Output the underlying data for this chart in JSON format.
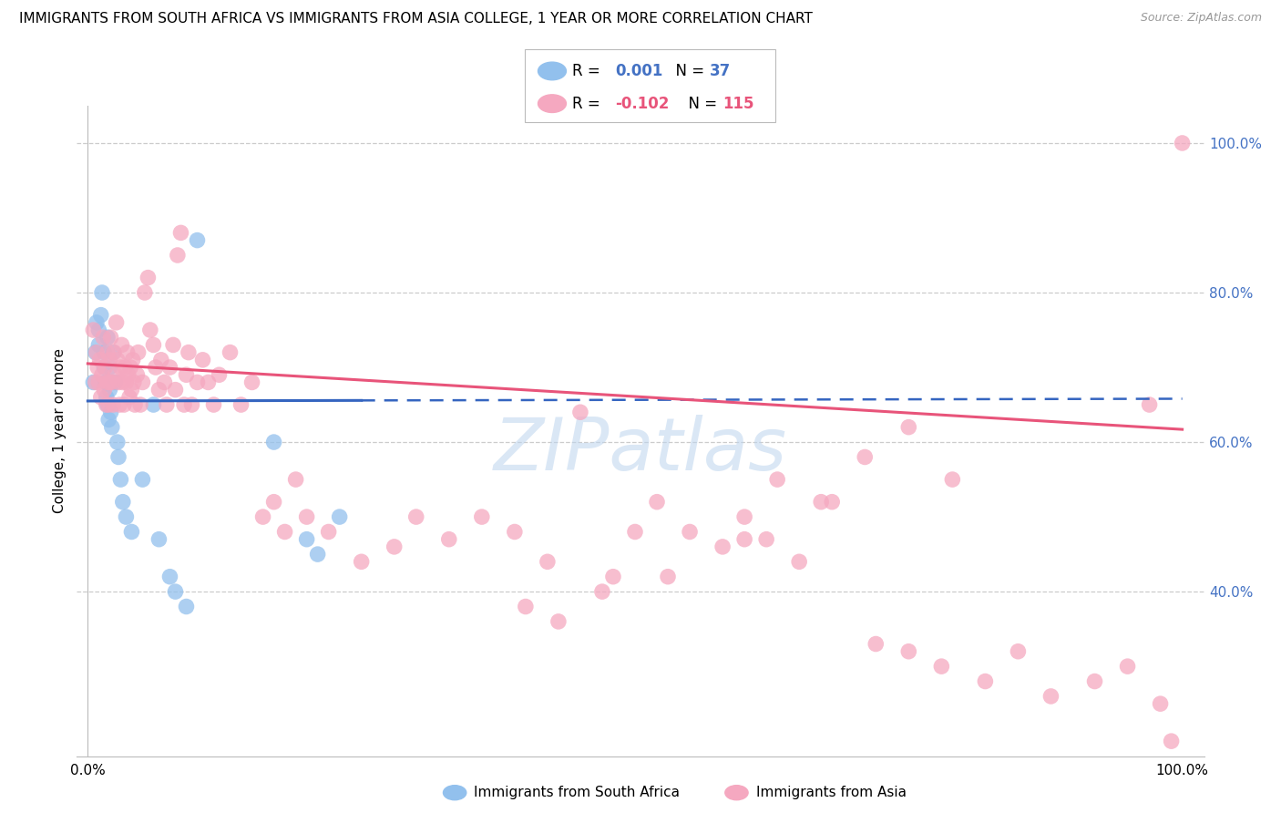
{
  "title": "IMMIGRANTS FROM SOUTH AFRICA VS IMMIGRANTS FROM ASIA COLLEGE, 1 YEAR OR MORE CORRELATION CHART",
  "source": "Source: ZipAtlas.com",
  "ylabel": "College, 1 year or more",
  "right_ytick_labels": [
    "100.0%",
    "80.0%",
    "60.0%",
    "40.0%"
  ],
  "right_ytick_values": [
    1.0,
    0.8,
    0.6,
    0.4
  ],
  "xtick_labels": [
    "0.0%",
    "100.0%"
  ],
  "xlim": [
    0.0,
    1.0
  ],
  "ylim": [
    0.18,
    1.05
  ],
  "legend_label_blue": "Immigrants from South Africa",
  "legend_label_pink": "Immigrants from Asia",
  "blue_color": "#92c0ed",
  "pink_color": "#f5a8c0",
  "blue_line_color": "#3565c0",
  "pink_line_color": "#e8547a",
  "blue_r": 0.001,
  "blue_n": 37,
  "pink_r": -0.102,
  "pink_n": 115,
  "watermark": "ZIPatlas",
  "title_fontsize": 11,
  "axis_label_fontsize": 11,
  "tick_fontsize": 11,
  "right_tick_color": "#4472c4",
  "grid_color": "#cccccc",
  "background_color": "#ffffff",
  "blue_trend_y0": 0.655,
  "blue_trend_y1": 0.658,
  "pink_trend_y0": 0.705,
  "pink_trend_y1": 0.617,
  "blue_scatter_x": [
    0.005,
    0.007,
    0.008,
    0.01,
    0.01,
    0.012,
    0.013,
    0.015,
    0.015,
    0.016,
    0.017,
    0.018,
    0.018,
    0.019,
    0.02,
    0.02,
    0.021,
    0.022,
    0.023,
    0.025,
    0.027,
    0.028,
    0.03,
    0.032,
    0.035,
    0.04,
    0.05,
    0.06,
    0.065,
    0.075,
    0.08,
    0.09,
    0.1,
    0.17,
    0.2,
    0.21,
    0.23
  ],
  "blue_scatter_y": [
    0.68,
    0.72,
    0.76,
    0.75,
    0.73,
    0.77,
    0.8,
    0.72,
    0.7,
    0.68,
    0.66,
    0.74,
    0.65,
    0.63,
    0.7,
    0.67,
    0.64,
    0.62,
    0.72,
    0.68,
    0.6,
    0.58,
    0.55,
    0.52,
    0.5,
    0.48,
    0.55,
    0.65,
    0.47,
    0.42,
    0.4,
    0.38,
    0.87,
    0.6,
    0.47,
    0.45,
    0.5
  ],
  "pink_scatter_x": [
    0.005,
    0.007,
    0.008,
    0.009,
    0.01,
    0.011,
    0.012,
    0.013,
    0.014,
    0.015,
    0.016,
    0.017,
    0.018,
    0.018,
    0.019,
    0.02,
    0.02,
    0.021,
    0.022,
    0.023,
    0.024,
    0.025,
    0.026,
    0.027,
    0.028,
    0.029,
    0.03,
    0.031,
    0.032,
    0.033,
    0.034,
    0.035,
    0.036,
    0.037,
    0.038,
    0.039,
    0.04,
    0.041,
    0.042,
    0.043,
    0.045,
    0.046,
    0.048,
    0.05,
    0.052,
    0.055,
    0.057,
    0.06,
    0.062,
    0.065,
    0.067,
    0.07,
    0.072,
    0.075,
    0.078,
    0.08,
    0.082,
    0.085,
    0.088,
    0.09,
    0.092,
    0.095,
    0.1,
    0.105,
    0.11,
    0.115,
    0.12,
    0.13,
    0.14,
    0.15,
    0.16,
    0.17,
    0.18,
    0.19,
    0.2,
    0.22,
    0.25,
    0.28,
    0.3,
    0.33,
    0.36,
    0.39,
    0.42,
    0.45,
    0.48,
    0.5,
    0.52,
    0.55,
    0.58,
    0.6,
    0.62,
    0.65,
    0.68,
    0.72,
    0.75,
    0.78,
    0.82,
    0.85,
    0.88,
    0.92,
    0.95,
    0.97,
    0.98,
    0.99,
    1.0,
    0.4,
    0.43,
    0.47,
    0.53,
    0.6,
    0.63,
    0.67,
    0.71,
    0.75,
    0.79
  ],
  "pink_scatter_y": [
    0.75,
    0.68,
    0.72,
    0.7,
    0.68,
    0.71,
    0.66,
    0.69,
    0.74,
    0.67,
    0.7,
    0.65,
    0.68,
    0.72,
    0.65,
    0.68,
    0.71,
    0.74,
    0.68,
    0.65,
    0.72,
    0.69,
    0.76,
    0.71,
    0.68,
    0.65,
    0.7,
    0.73,
    0.68,
    0.65,
    0.7,
    0.68,
    0.72,
    0.69,
    0.66,
    0.7,
    0.67,
    0.71,
    0.68,
    0.65,
    0.69,
    0.72,
    0.65,
    0.68,
    0.8,
    0.82,
    0.75,
    0.73,
    0.7,
    0.67,
    0.71,
    0.68,
    0.65,
    0.7,
    0.73,
    0.67,
    0.85,
    0.88,
    0.65,
    0.69,
    0.72,
    0.65,
    0.68,
    0.71,
    0.68,
    0.65,
    0.69,
    0.72,
    0.65,
    0.68,
    0.5,
    0.52,
    0.48,
    0.55,
    0.5,
    0.48,
    0.44,
    0.46,
    0.5,
    0.47,
    0.5,
    0.48,
    0.44,
    0.64,
    0.42,
    0.48,
    0.52,
    0.48,
    0.46,
    0.5,
    0.47,
    0.44,
    0.52,
    0.33,
    0.32,
    0.3,
    0.28,
    0.32,
    0.26,
    0.28,
    0.3,
    0.65,
    0.25,
    0.2,
    1.0,
    0.38,
    0.36,
    0.4,
    0.42,
    0.47,
    0.55,
    0.52,
    0.58,
    0.62,
    0.55
  ]
}
